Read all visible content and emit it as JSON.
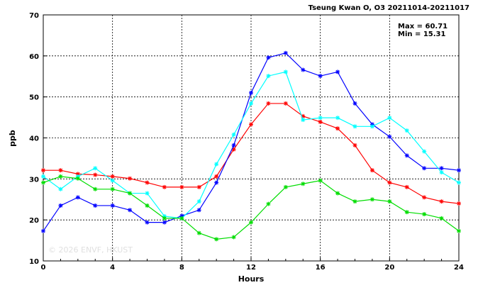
{
  "chart_data": {
    "type": "line",
    "title": "Tseung Kwan O, O3 20211014-20211017",
    "xlabel": "Hours",
    "ylabel": "ppb",
    "xlim": [
      0,
      24
    ],
    "ylim": [
      10,
      70
    ],
    "x_ticks": [
      0,
      4,
      8,
      12,
      16,
      20,
      24
    ],
    "y_ticks": [
      10,
      20,
      30,
      40,
      50,
      60,
      70
    ],
    "grid": true,
    "annotations": {
      "max": "Max = 60.71",
      "min": "Min = 15.31"
    },
    "watermark": "© 2026 ENVF, HKUST",
    "x": [
      0,
      1,
      2,
      3,
      4,
      5,
      6,
      7,
      8,
      9,
      10,
      11,
      12,
      13,
      14,
      15,
      16,
      17,
      18,
      19,
      20,
      21,
      22,
      23,
      24
    ],
    "series": [
      {
        "color": "#ff0000",
        "values": [
          32.1,
          32.1,
          31.2,
          31.0,
          30.6,
          30.1,
          29.1,
          28.0,
          28.0,
          28.0,
          30.6,
          37.2,
          43.3,
          48.4,
          48.4,
          45.3,
          43.9,
          42.3,
          38.2,
          32.1,
          29.1,
          28.0,
          25.5,
          24.5,
          24.0
        ]
      },
      {
        "color": "#0000ff",
        "values": [
          17.3,
          23.5,
          25.5,
          23.5,
          23.5,
          22.4,
          19.4,
          19.4,
          21.0,
          22.4,
          29.1,
          38.2,
          51.0,
          59.6,
          60.7,
          56.6,
          55.1,
          56.1,
          48.4,
          43.3,
          40.3,
          35.7,
          32.6,
          32.6,
          32.1
        ]
      },
      {
        "color": "#00ffff",
        "values": [
          30.6,
          27.5,
          30.6,
          32.6,
          29.6,
          26.5,
          26.5,
          20.9,
          20.4,
          24.5,
          33.6,
          40.8,
          48.4,
          55.1,
          56.1,
          44.4,
          44.9,
          44.9,
          42.8,
          42.8,
          44.9,
          41.8,
          36.7,
          31.6,
          29.1
        ]
      },
      {
        "color": "#00dd00",
        "values": [
          29.1,
          30.6,
          30.1,
          27.5,
          27.5,
          26.5,
          23.5,
          20.4,
          20.4,
          16.8,
          15.3,
          15.8,
          19.4,
          23.9,
          28.0,
          28.8,
          29.6,
          26.5,
          24.5,
          25.0,
          24.5,
          21.9,
          21.4,
          20.4,
          17.3
        ]
      }
    ]
  }
}
